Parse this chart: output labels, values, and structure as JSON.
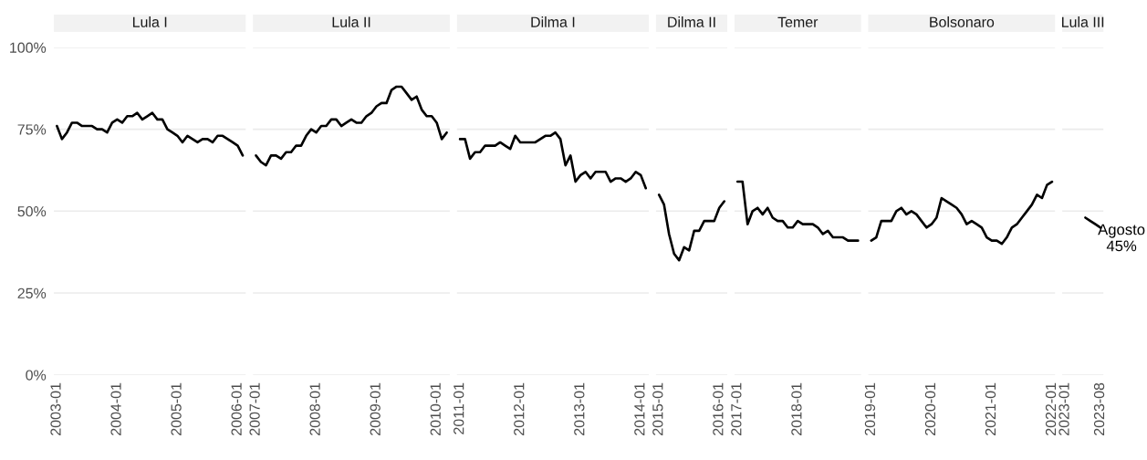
{
  "chart_data": [
    {
      "type": "line",
      "title": "Lula I",
      "categories": [
        "2003-01",
        null,
        null,
        null,
        null,
        null,
        null,
        null,
        null,
        null,
        null,
        null,
        "2004-01",
        null,
        null,
        null,
        null,
        null,
        null,
        null,
        null,
        null,
        null,
        null,
        "2005-01",
        null,
        null,
        null,
        null,
        null,
        null,
        null,
        null,
        null,
        null,
        null,
        "2006-01",
        null
      ],
      "series": [
        {
          "color": "#000000",
          "values": [
            76,
            72,
            74,
            77,
            77,
            76,
            76,
            76,
            75,
            75,
            74,
            77,
            78,
            77,
            79,
            79,
            80,
            78,
            79,
            80,
            78,
            78,
            75,
            74,
            73,
            71,
            73,
            72,
            71,
            72,
            72,
            71,
            73,
            73,
            72,
            71,
            70,
            67
          ]
        }
      ],
      "ylim": [
        0,
        100
      ],
      "yticks": [
        {
          "value": 0,
          "label": "0%"
        },
        {
          "value": 25,
          "label": "25%"
        },
        {
          "value": 50,
          "label": "50%"
        },
        {
          "value": 75,
          "label": "75%"
        },
        {
          "value": 100,
          "label": "100%"
        }
      ],
      "grid": "y"
    },
    {
      "type": "line",
      "title": "Lula II",
      "categories": [
        "2007-01",
        null,
        null,
        null,
        null,
        null,
        null,
        null,
        null,
        null,
        null,
        null,
        "2008-01",
        null,
        null,
        null,
        null,
        null,
        null,
        null,
        null,
        null,
        null,
        null,
        "2009-01",
        null,
        null,
        null,
        null,
        null,
        null,
        null,
        null,
        null,
        null,
        null,
        "2010-01",
        null,
        null
      ],
      "series": [
        {
          "color": "#000000",
          "values": [
            67,
            65,
            64,
            67,
            67,
            66,
            68,
            68,
            70,
            70,
            73,
            75,
            74,
            76,
            76,
            78,
            78,
            76,
            77,
            78,
            77,
            77,
            79,
            80,
            82,
            83,
            83,
            87,
            88,
            88,
            86,
            84,
            85,
            81,
            79,
            79,
            77,
            72,
            74
          ]
        }
      ],
      "ylim": [
        0,
        100
      ],
      "yticks": [
        0,
        25,
        50,
        75,
        100
      ],
      "grid": "y",
      "tick_labels": "x"
    },
    {
      "type": "line",
      "title": "Dilma I",
      "categories": [
        "2011-01",
        null,
        null,
        null,
        null,
        null,
        null,
        null,
        null,
        null,
        null,
        null,
        "2012-01",
        null,
        null,
        null,
        null,
        null,
        null,
        null,
        null,
        null,
        null,
        null,
        "2013-01",
        null,
        null,
        null,
        null,
        null,
        null,
        null,
        null,
        null,
        null,
        null,
        "2014-01",
        null
      ],
      "series": [
        {
          "color": "#000000",
          "values": [
            72,
            72,
            66,
            68,
            68,
            70,
            70,
            70,
            71,
            70,
            69,
            73,
            71,
            71,
            71,
            71,
            72,
            73,
            73,
            74,
            72,
            64,
            67,
            59,
            61,
            62,
            60,
            62,
            62,
            62,
            59,
            60,
            60,
            59,
            60,
            62,
            61,
            57
          ]
        }
      ],
      "ylim": [
        0,
        100
      ],
      "yticks": [
        0,
        25,
        50,
        75,
        100
      ],
      "grid": "y",
      "tick_labels": "x"
    },
    {
      "type": "line",
      "title": "Dilma II",
      "categories": [
        "2015-01",
        null,
        null,
        null,
        null,
        null,
        null,
        null,
        null,
        null,
        null,
        null,
        "2016-01",
        null
      ],
      "series": [
        {
          "color": "#000000",
          "values": [
            55,
            52,
            43,
            37,
            35,
            39,
            38,
            44,
            44,
            47,
            47,
            47,
            51,
            53
          ]
        }
      ],
      "ylim": [
        0,
        100
      ],
      "yticks": [
        0,
        25,
        50,
        75,
        100
      ],
      "grid": "y",
      "tick_labels": "x"
    },
    {
      "type": "line",
      "title": "Temer",
      "categories": [
        "2017-01",
        null,
        null,
        null,
        null,
        null,
        null,
        null,
        null,
        null,
        null,
        null,
        "2018-01",
        null,
        null,
        null,
        null,
        null,
        null,
        null,
        null,
        null,
        null,
        null,
        null
      ],
      "series": [
        {
          "color": "#000000",
          "values": [
            59,
            59,
            46,
            50,
            51,
            49,
            51,
            48,
            47,
            47,
            45,
            45,
            47,
            46,
            46,
            46,
            45,
            43,
            44,
            42,
            42,
            42,
            41,
            41,
            41
          ]
        }
      ],
      "ylim": [
        0,
        100
      ],
      "yticks": [
        0,
        25,
        50,
        75,
        100
      ],
      "grid": "y",
      "tick_labels": "x"
    },
    {
      "type": "line",
      "title": "Bolsonaro",
      "categories": [
        "2019-01",
        null,
        null,
        null,
        null,
        null,
        null,
        null,
        null,
        null,
        null,
        null,
        "2020-01",
        null,
        null,
        null,
        null,
        null,
        null,
        null,
        null,
        null,
        null,
        null,
        "2021-01",
        null,
        null,
        null,
        null,
        null,
        null,
        null,
        null,
        null,
        null,
        null,
        "2022-01"
      ],
      "series": [
        {
          "color": "#000000",
          "values": [
            41,
            42,
            47,
            47,
            47,
            50,
            51,
            49,
            50,
            49,
            47,
            45,
            46,
            48,
            54,
            53,
            52,
            51,
            49,
            46,
            47,
            46,
            45,
            42,
            41,
            41,
            40,
            42,
            45,
            46,
            48,
            50,
            52,
            55,
            54,
            58,
            59
          ]
        }
      ],
      "ylim": [
        0,
        100
      ],
      "yticks": [
        0,
        25,
        50,
        75,
        100
      ],
      "grid": "y",
      "tick_labels": "x"
    },
    {
      "type": "line",
      "title": "Lula III",
      "categories": [
        "2023-01",
        null,
        null,
        null,
        null,
        null,
        null,
        "2023-08"
      ],
      "series": [
        {
          "color": "#000000",
          "values": [
            null,
            null,
            null,
            null,
            48,
            47,
            46,
            45
          ]
        }
      ],
      "ylim": [
        0,
        100
      ],
      "yticks": [
        0,
        25,
        50,
        75,
        100
      ],
      "grid": "y",
      "tick_labels": "x",
      "annotations": [
        {
          "text": "Agosto\n45%",
          "x": "2023-08",
          "y": 45
        }
      ]
    }
  ]
}
